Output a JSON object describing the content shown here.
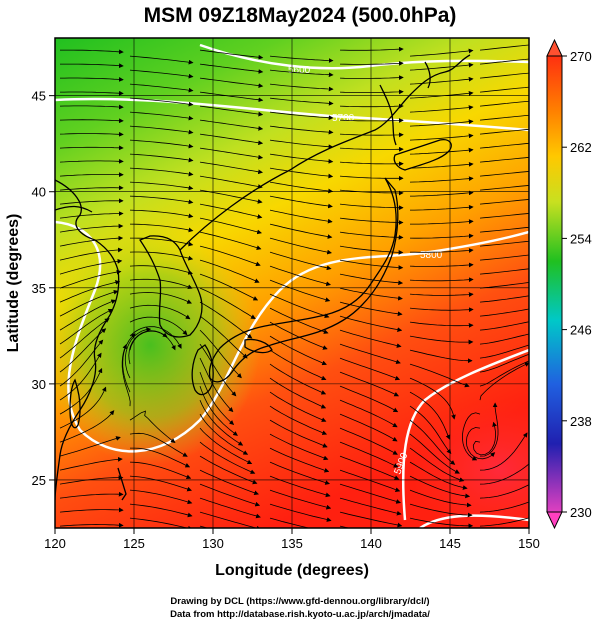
{
  "title": "MSM 09Z18May2024 (500.0hPa)",
  "x_axis": {
    "label": "Longitude (degrees)",
    "range": [
      120,
      150
    ],
    "ticks": [
      "120",
      "125",
      "130",
      "135",
      "140",
      "145",
      "150"
    ]
  },
  "y_axis": {
    "label": "Latitude  (degrees)",
    "range": [
      22.5,
      48
    ],
    "ticks": [
      "25",
      "30",
      "35",
      "40",
      "45"
    ]
  },
  "colorbar": {
    "range": [
      230,
      270
    ],
    "labels": [
      "270",
      "262",
      "254",
      "246",
      "238",
      "230"
    ]
  },
  "contour_labels": [
    "5600",
    "5700",
    "5800",
    "5900"
  ],
  "credits": {
    "line1": "Drawing by DCL (https://www.gfd-dennou.org/library/dcl/)",
    "line2": "Data from http://database.rish.kyoto-u.ac.jp/arch/jmadata/"
  },
  "colors": {
    "cold": "#ff40a0",
    "cool": "#1030c0",
    "mid": "#00c8d0",
    "mild": "#20c020",
    "warm": "#ffb000",
    "hot": "#ff2010",
    "contour": "#ffffff",
    "streamline": "#000000"
  }
}
